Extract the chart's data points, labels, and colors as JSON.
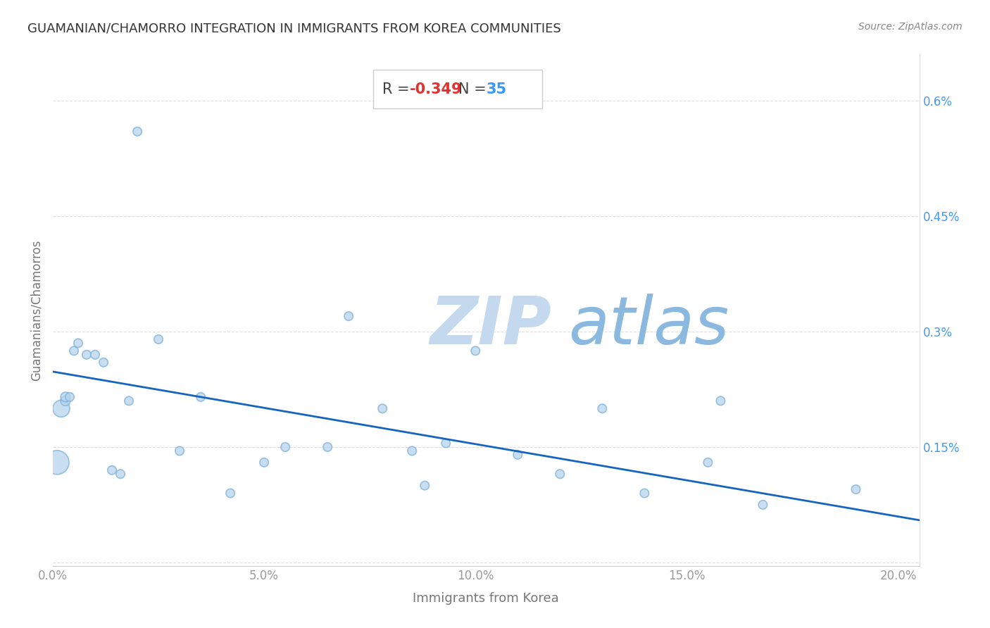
{
  "title": "GUAMANIAN/CHAMORRO INTEGRATION IN IMMIGRANTS FROM KOREA COMMUNITIES",
  "source": "Source: ZipAtlas.com",
  "xlabel": "Immigrants from Korea",
  "ylabel": "Guamanians/Chamorros",
  "R_text": "R = ",
  "R_value": "-0.349",
  "N_text": "   N = ",
  "N_value": "35",
  "xlim": [
    0.0,
    0.205
  ],
  "ylim": [
    -5e-05,
    0.0066
  ],
  "xticks": [
    0.0,
    0.05,
    0.1,
    0.15,
    0.2
  ],
  "xticklabels": [
    "0.0%",
    "5.0%",
    "10.0%",
    "15.0%",
    "20.0%"
  ],
  "yticks": [
    0.0,
    0.0015,
    0.003,
    0.0045,
    0.006
  ],
  "yticklabels": [
    "",
    "0.15%",
    "0.3%",
    "0.45%",
    "0.6%"
  ],
  "scatter_color": "#b8d4ed",
  "scatter_edge_color": "#7ab0d8",
  "line_color": "#1565c0",
  "watermark_zip_color": "#c5d9ee",
  "watermark_atlas_color": "#8ab8de",
  "R_label_color": "#444444",
  "R_value_color": "#e53030",
  "N_label_color": "#444444",
  "N_value_color": "#3399ff",
  "background_color": "#ffffff",
  "title_color": "#333333",
  "axis_label_color": "#777777",
  "ytick_color": "#4499ee",
  "xtick_color": "#999999",
  "grid_color": "#dddddd",
  "scatter_x": [
    0.001,
    0.002,
    0.003,
    0.003,
    0.004,
    0.005,
    0.006,
    0.008,
    0.01,
    0.012,
    0.014,
    0.016,
    0.018,
    0.02,
    0.025,
    0.03,
    0.035,
    0.042,
    0.05,
    0.055,
    0.065,
    0.07,
    0.078,
    0.085,
    0.088,
    0.093,
    0.1,
    0.11,
    0.12,
    0.13,
    0.14,
    0.155,
    0.158,
    0.168,
    0.19
  ],
  "scatter_y": [
    0.0013,
    0.002,
    0.0021,
    0.00215,
    0.00215,
    0.00275,
    0.00285,
    0.0027,
    0.0027,
    0.0026,
    0.0012,
    0.00115,
    0.0021,
    0.0056,
    0.0029,
    0.00145,
    0.00215,
    0.0009,
    0.0013,
    0.0015,
    0.0015,
    0.0032,
    0.002,
    0.00145,
    0.001,
    0.00155,
    0.00275,
    0.0014,
    0.00115,
    0.002,
    0.0009,
    0.0013,
    0.0021,
    0.00075,
    0.00095
  ],
  "scatter_size": [
    600,
    300,
    100,
    100,
    80,
    80,
    80,
    80,
    80,
    80,
    80,
    80,
    80,
    80,
    80,
    80,
    80,
    80,
    80,
    80,
    80,
    80,
    80,
    80,
    80,
    80,
    80,
    80,
    80,
    80,
    80,
    80,
    80,
    80,
    80
  ],
  "line_x": [
    0.0,
    0.205
  ],
  "line_y_start": 0.00248,
  "line_y_end": 0.00055
}
